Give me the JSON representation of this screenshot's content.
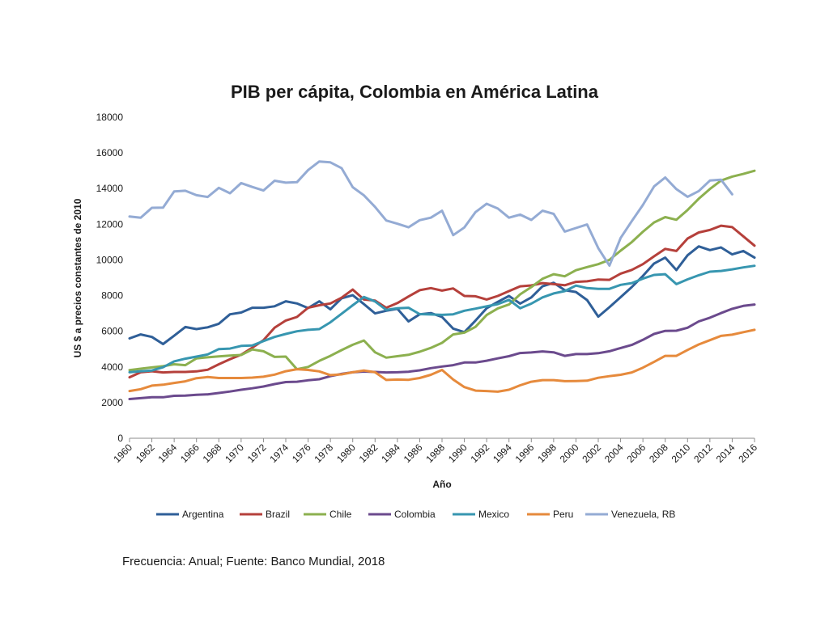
{
  "source_note": "Frecuencia: Anual; Fuente: Banco Mundial, 2018",
  "chart_data": {
    "type": "line",
    "title": "PIB per cápita, Colombia en América Latina",
    "xlabel": "Año",
    "ylabel": "US $ a precios constantes de 2010",
    "ylim": [
      0,
      18000
    ],
    "yticks": [
      0,
      2000,
      4000,
      6000,
      8000,
      10000,
      12000,
      14000,
      16000,
      18000
    ],
    "xlim": [
      1960,
      2016
    ],
    "xticks": [
      1960,
      1962,
      1964,
      1966,
      1968,
      1970,
      1972,
      1974,
      1976,
      1978,
      1980,
      1982,
      1984,
      1986,
      1988,
      1990,
      1992,
      1994,
      1996,
      1998,
      2000,
      2002,
      2004,
      2006,
      2008,
      2010,
      2012,
      2014,
      2016
    ],
    "grid": false,
    "legend_position": "bottom",
    "x": [
      1960,
      1961,
      1962,
      1963,
      1964,
      1965,
      1966,
      1967,
      1968,
      1969,
      1970,
      1971,
      1972,
      1973,
      1974,
      1975,
      1976,
      1977,
      1978,
      1979,
      1980,
      1981,
      1982,
      1983,
      1984,
      1985,
      1986,
      1987,
      1988,
      1989,
      1990,
      1991,
      1992,
      1993,
      1994,
      1995,
      1996,
      1997,
      1998,
      1999,
      2000,
      2001,
      2002,
      2003,
      2004,
      2005,
      2006,
      2007,
      2008,
      2009,
      2010,
      2011,
      2012,
      2013,
      2014,
      2015,
      2016
    ],
    "series": [
      {
        "name": "Argentina",
        "color": "#2f5f98",
        "values": [
          5600,
          5820,
          5680,
          5280,
          5750,
          6240,
          6120,
          6220,
          6420,
          6950,
          7050,
          7320,
          7320,
          7400,
          7680,
          7560,
          7300,
          7680,
          7230,
          7850,
          8020,
          7520,
          7000,
          7150,
          7260,
          6550,
          6950,
          7020,
          6800,
          6150,
          5950,
          6600,
          7290,
          7650,
          7980,
          7550,
          7900,
          8520,
          8720,
          8300,
          8200,
          7750,
          6820,
          7350,
          7910,
          8480,
          9100,
          9800,
          10130,
          9430,
          10260,
          10760,
          10550,
          10700,
          10310,
          10500,
          10130
        ]
      },
      {
        "name": "Brazil",
        "color": "#b5403b",
        "values": [
          3420,
          3700,
          3760,
          3690,
          3720,
          3720,
          3750,
          3840,
          4150,
          4430,
          4690,
          5080,
          5500,
          6200,
          6600,
          6800,
          7320,
          7460,
          7560,
          7880,
          8340,
          7780,
          7720,
          7320,
          7580,
          7950,
          8300,
          8420,
          8280,
          8400,
          7980,
          7960,
          7780,
          7980,
          8250,
          8520,
          8570,
          8700,
          8640,
          8580,
          8770,
          8800,
          8900,
          8880,
          9230,
          9440,
          9760,
          10200,
          10620,
          10500,
          11200,
          11540,
          11680,
          11920,
          11840,
          11320,
          10800
        ]
      },
      {
        "name": "Chile",
        "color": "#8cb04f",
        "values": [
          3820,
          3900,
          3970,
          4040,
          4150,
          4100,
          4480,
          4540,
          4590,
          4640,
          4670,
          4980,
          4880,
          4560,
          4580,
          3870,
          4000,
          4340,
          4620,
          4940,
          5240,
          5480,
          4820,
          4520,
          4600,
          4680,
          4850,
          5070,
          5350,
          5820,
          5920,
          6250,
          6910,
          7280,
          7500,
          8070,
          8480,
          8940,
          9200,
          9080,
          9420,
          9600,
          9760,
          10000,
          10520,
          11000,
          11580,
          12100,
          12400,
          12250,
          12800,
          13430,
          13980,
          14450,
          14670,
          14820,
          15000
        ]
      },
      {
        "name": "Colombia",
        "color": "#6b4a8d",
        "values": [
          2200,
          2250,
          2300,
          2300,
          2380,
          2390,
          2440,
          2460,
          2540,
          2620,
          2720,
          2800,
          2900,
          3040,
          3150,
          3170,
          3250,
          3310,
          3480,
          3610,
          3700,
          3740,
          3720,
          3690,
          3700,
          3730,
          3810,
          3930,
          4020,
          4100,
          4250,
          4250,
          4350,
          4480,
          4600,
          4780,
          4810,
          4870,
          4820,
          4620,
          4720,
          4720,
          4770,
          4880,
          5060,
          5230,
          5520,
          5850,
          6020,
          6030,
          6200,
          6550,
          6760,
          7020,
          7260,
          7420,
          7500
        ]
      },
      {
        "name": "Mexico",
        "color": "#3796b0",
        "values": [
          3700,
          3760,
          3800,
          3980,
          4310,
          4460,
          4580,
          4700,
          5000,
          5030,
          5180,
          5200,
          5450,
          5680,
          5850,
          6000,
          6080,
          6120,
          6500,
          6980,
          7460,
          7920,
          7670,
          7200,
          7290,
          7320,
          6960,
          6940,
          6920,
          6950,
          7150,
          7270,
          7400,
          7520,
          7760,
          7290,
          7550,
          7900,
          8120,
          8250,
          8560,
          8420,
          8380,
          8380,
          8600,
          8700,
          8950,
          9160,
          9200,
          8640,
          8910,
          9140,
          9340,
          9380,
          9470,
          9580,
          9670
        ]
      },
      {
        "name": "Peru",
        "color": "#e68a3c",
        "values": [
          2650,
          2750,
          2950,
          3000,
          3100,
          3190,
          3370,
          3430,
          3380,
          3380,
          3380,
          3400,
          3450,
          3570,
          3760,
          3870,
          3830,
          3750,
          3540,
          3580,
          3700,
          3800,
          3700,
          3270,
          3290,
          3280,
          3380,
          3560,
          3830,
          3290,
          2870,
          2670,
          2650,
          2610,
          2720,
          2970,
          3170,
          3260,
          3260,
          3200,
          3210,
          3230,
          3390,
          3480,
          3560,
          3690,
          3960,
          4280,
          4620,
          4620,
          4950,
          5260,
          5500,
          5740,
          5810,
          5950,
          6080
        ]
      },
      {
        "name": "Venezuela, RB",
        "color": "#94abd4",
        "values": [
          12430,
          12370,
          12920,
          12930,
          13840,
          13880,
          13630,
          13530,
          14040,
          13740,
          14310,
          14090,
          13890,
          14440,
          14330,
          14360,
          15040,
          15520,
          15470,
          15150,
          14080,
          13620,
          12970,
          12210,
          12030,
          11830,
          12230,
          12370,
          12760,
          11390,
          11820,
          12680,
          13150,
          12880,
          12370,
          12540,
          12240,
          12760,
          12580,
          11590,
          11790,
          11990,
          10660,
          9680,
          11230,
          12180,
          13080,
          14120,
          14620,
          13970,
          13540,
          13860,
          14450,
          14500,
          13680,
          null,
          null
        ]
      }
    ]
  }
}
